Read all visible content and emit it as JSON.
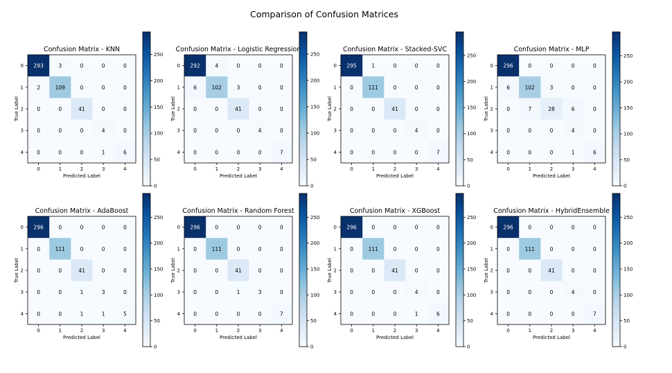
{
  "figure": {
    "title": "Comparison of Confusion Matrices"
  },
  "colors": {
    "cmap_low": "#f7fbff",
    "cmap_high": "#08306b",
    "text_dark": "#000000",
    "text_light": "#ffffff",
    "axis": "#000000"
  },
  "chart_data": [
    {
      "type": "heatmap",
      "title": "Confusion Matrix - KNN",
      "xlabel": "Predicted Label",
      "ylabel": "True Label",
      "x_ticks": [
        "0",
        "1",
        "2",
        "3",
        "4"
      ],
      "y_ticks": [
        "0",
        "1",
        "2",
        "3",
        "4"
      ],
      "matrix": [
        [
          293,
          3,
          0,
          0,
          0
        ],
        [
          2,
          109,
          0,
          0,
          0
        ],
        [
          0,
          0,
          41,
          0,
          0
        ],
        [
          0,
          0,
          0,
          4,
          0
        ],
        [
          0,
          0,
          0,
          1,
          6
        ]
      ],
      "vmin": 0,
      "vmax": 293,
      "colorbar_ticks": [
        0,
        50,
        100,
        150,
        200,
        250
      ],
      "colorbar_labels": [
        "0",
        "50",
        "100",
        "150",
        "200",
        "250"
      ]
    },
    {
      "type": "heatmap",
      "title": "Confusion Matrix - Logistic Regression",
      "xlabel": "Predicted Label",
      "ylabel": "True Label",
      "x_ticks": [
        "0",
        "1",
        "2",
        "3",
        "4"
      ],
      "y_ticks": [
        "0",
        "1",
        "2",
        "3",
        "4"
      ],
      "matrix": [
        [
          292,
          4,
          0,
          0,
          0
        ],
        [
          6,
          102,
          3,
          0,
          0
        ],
        [
          0,
          0,
          41,
          0,
          0
        ],
        [
          0,
          0,
          0,
          4,
          0
        ],
        [
          0,
          0,
          0,
          0,
          7
        ]
      ],
      "vmin": 0,
      "vmax": 292,
      "colorbar_ticks": [
        0,
        50,
        100,
        150,
        200,
        250
      ],
      "colorbar_labels": [
        "0",
        "50",
        "100",
        "150",
        "200",
        "250"
      ]
    },
    {
      "type": "heatmap",
      "title": "Confusion Matrix - Stacked-SVC",
      "xlabel": "Predicted Label",
      "ylabel": "True Label",
      "x_ticks": [
        "0",
        "1",
        "2",
        "3",
        "4"
      ],
      "y_ticks": [
        "0",
        "1",
        "2",
        "3",
        "4"
      ],
      "matrix": [
        [
          295,
          1,
          0,
          0,
          0
        ],
        [
          0,
          111,
          0,
          0,
          0
        ],
        [
          0,
          0,
          41,
          0,
          0
        ],
        [
          0,
          0,
          0,
          4,
          0
        ],
        [
          0,
          0,
          0,
          0,
          7
        ]
      ],
      "vmin": 0,
      "vmax": 295,
      "colorbar_ticks": [
        0,
        50,
        100,
        150,
        200,
        250
      ],
      "colorbar_labels": [
        "0",
        "50",
        "100",
        "150",
        "200",
        "250"
      ]
    },
    {
      "type": "heatmap",
      "title": "Confusion Matrix - MLP",
      "xlabel": "Predicted Label",
      "ylabel": "True Label",
      "x_ticks": [
        "0",
        "1",
        "2",
        "3",
        "4"
      ],
      "y_ticks": [
        "0",
        "1",
        "2",
        "3",
        "4"
      ],
      "matrix": [
        [
          296,
          0,
          0,
          0,
          0
        ],
        [
          6,
          102,
          3,
          0,
          0
        ],
        [
          0,
          7,
          28,
          6,
          0
        ],
        [
          0,
          0,
          0,
          4,
          0
        ],
        [
          0,
          0,
          0,
          1,
          6
        ]
      ],
      "vmin": 0,
      "vmax": 296,
      "colorbar_ticks": [
        0,
        50,
        100,
        150,
        200,
        250
      ],
      "colorbar_labels": [
        "0",
        "50",
        "100",
        "150",
        "200",
        "250"
      ]
    },
    {
      "type": "heatmap",
      "title": "Confusion Matrix - AdaBoost",
      "xlabel": "Predicted Label",
      "ylabel": "True Label",
      "x_ticks": [
        "0",
        "1",
        "2",
        "3",
        "4"
      ],
      "y_ticks": [
        "0",
        "1",
        "2",
        "3",
        "4"
      ],
      "matrix": [
        [
          296,
          0,
          0,
          0,
          0
        ],
        [
          0,
          111,
          0,
          0,
          0
        ],
        [
          0,
          0,
          41,
          0,
          0
        ],
        [
          0,
          0,
          1,
          3,
          0
        ],
        [
          0,
          0,
          1,
          1,
          5
        ]
      ],
      "vmin": 0,
      "vmax": 296,
      "colorbar_ticks": [
        0,
        50,
        100,
        150,
        200,
        250
      ],
      "colorbar_labels": [
        "0",
        "50",
        "100",
        "150",
        "200",
        "250"
      ]
    },
    {
      "type": "heatmap",
      "title": "Confusion Matrix - Random Forest",
      "xlabel": "Predicted Label",
      "ylabel": "True Label",
      "x_ticks": [
        "0",
        "1",
        "2",
        "3",
        "4"
      ],
      "y_ticks": [
        "0",
        "1",
        "2",
        "3",
        "4"
      ],
      "matrix": [
        [
          296,
          0,
          0,
          0,
          0
        ],
        [
          0,
          111,
          0,
          0,
          0
        ],
        [
          0,
          0,
          41,
          0,
          0
        ],
        [
          0,
          0,
          1,
          3,
          0
        ],
        [
          0,
          0,
          0,
          0,
          7
        ]
      ],
      "vmin": 0,
      "vmax": 296,
      "colorbar_ticks": [
        0,
        50,
        100,
        150,
        200,
        250
      ],
      "colorbar_labels": [
        "0",
        "50",
        "100",
        "150",
        "200",
        "250"
      ]
    },
    {
      "type": "heatmap",
      "title": "Confusion Matrix - XGBoost",
      "xlabel": "Predicted Label",
      "ylabel": "True Label",
      "x_ticks": [
        "0",
        "1",
        "2",
        "3",
        "4"
      ],
      "y_ticks": [
        "0",
        "1",
        "2",
        "3",
        "4"
      ],
      "matrix": [
        [
          296,
          0,
          0,
          0,
          0
        ],
        [
          0,
          111,
          0,
          0,
          0
        ],
        [
          0,
          0,
          41,
          0,
          0
        ],
        [
          0,
          0,
          0,
          4,
          0
        ],
        [
          0,
          0,
          0,
          1,
          6
        ]
      ],
      "vmin": 0,
      "vmax": 296,
      "colorbar_ticks": [
        0,
        50,
        100,
        150,
        200,
        250
      ],
      "colorbar_labels": [
        "0",
        "50",
        "100",
        "150",
        "200",
        "250"
      ]
    },
    {
      "type": "heatmap",
      "title": "Confusion Matrix - HybridEnsemble",
      "xlabel": "Predicted Label",
      "ylabel": "True Label",
      "x_ticks": [
        "0",
        "1",
        "2",
        "3",
        "4"
      ],
      "y_ticks": [
        "0",
        "1",
        "2",
        "3",
        "4"
      ],
      "matrix": [
        [
          296,
          0,
          0,
          0,
          0
        ],
        [
          0,
          111,
          0,
          0,
          0
        ],
        [
          0,
          0,
          41,
          0,
          0
        ],
        [
          0,
          0,
          0,
          4,
          0
        ],
        [
          0,
          0,
          0,
          0,
          7
        ]
      ],
      "vmin": 0,
      "vmax": 296,
      "colorbar_ticks": [
        0,
        50,
        100,
        150,
        200,
        250
      ],
      "colorbar_labels": [
        "0",
        "50",
        "100",
        "150",
        "200",
        "250"
      ]
    }
  ]
}
